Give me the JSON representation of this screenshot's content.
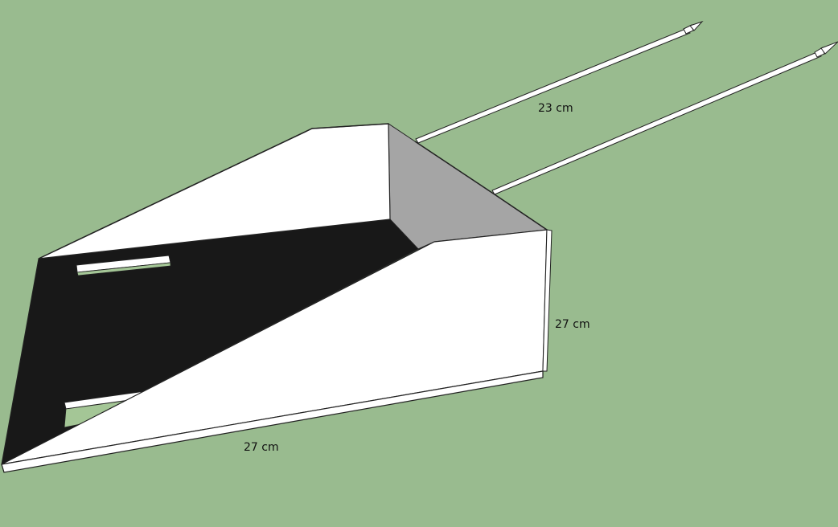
{
  "dimensions": {
    "rod_length": "23 cm",
    "box_height": "27 cm",
    "box_width": "27 cm"
  },
  "colors": {
    "background": "#99bb8f",
    "panel_white": "#ffffff",
    "panel_interior": "#181818",
    "panel_back": "#a5a5a5",
    "edge": "#222222"
  }
}
